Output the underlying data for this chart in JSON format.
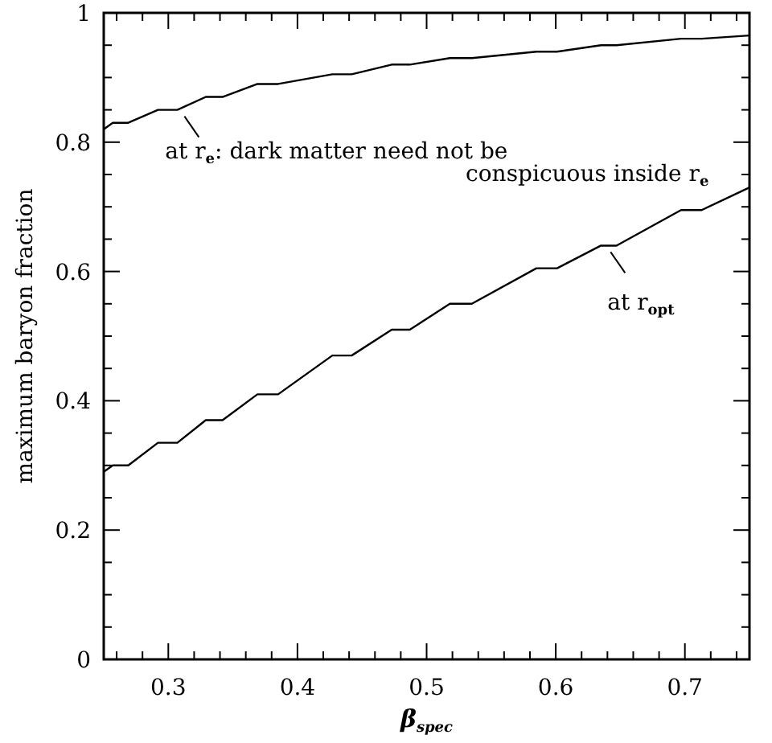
{
  "chart_data": {
    "type": "line",
    "xlabel": "β$_{spec}$",
    "ylabel": "maximum baryon fraction",
    "xlim": [
      0.25,
      0.75
    ],
    "ylim": [
      0,
      1
    ],
    "xticks": [
      {
        "value": 0.26,
        "label": null
      },
      {
        "value": 0.28,
        "label": null
      },
      0.3,
      {
        "value": 0.32,
        "label": null
      },
      {
        "value": 0.34,
        "label": null
      },
      {
        "value": 0.36,
        "label": null
      },
      {
        "value": 0.38,
        "label": null
      },
      0.4,
      {
        "value": 0.42,
        "label": null
      },
      {
        "value": 0.44,
        "label": null
      },
      {
        "value": 0.46,
        "label": null
      },
      {
        "value": 0.48,
        "label": null
      },
      0.5,
      {
        "value": 0.52,
        "label": null
      },
      {
        "value": 0.54,
        "label": null
      },
      {
        "value": 0.56,
        "label": null
      },
      {
        "value": 0.58,
        "label": null
      },
      0.6,
      {
        "value": 0.62,
        "label": null
      },
      {
        "value": 0.64,
        "label": null
      },
      {
        "value": 0.66,
        "label": null
      },
      {
        "value": 0.68,
        "label": null
      },
      0.7,
      {
        "value": 0.72,
        "label": null
      },
      {
        "value": 0.74,
        "label": null
      }
    ],
    "yticks": [
      0,
      {
        "value": 0.05,
        "label": null
      },
      {
        "value": 0.1,
        "label": null
      },
      {
        "value": 0.15,
        "label": null
      },
      0.2,
      {
        "value": 0.25,
        "label": null
      },
      {
        "value": 0.3,
        "label": null
      },
      {
        "value": 0.35,
        "label": null
      },
      0.4,
      {
        "value": 0.45,
        "label": null
      },
      {
        "value": 0.5,
        "label": null
      },
      {
        "value": 0.55,
        "label": null
      },
      0.6,
      {
        "value": 0.65,
        "label": null
      },
      {
        "value": 0.7,
        "label": null
      },
      {
        "value": 0.75,
        "label": null
      },
      0.8,
      {
        "value": 0.85,
        "label": null
      },
      {
        "value": 0.9,
        "label": null
      },
      {
        "value": 0.95,
        "label": null
      },
      1
    ],
    "grid": false,
    "marker": "none",
    "line_style": "solid",
    "series": [
      {
        "color": "#000000",
        "x": [
          0.25,
          0.257,
          0.269,
          0.292,
          0.307,
          0.329,
          0.342,
          0.369,
          0.385,
          0.427,
          0.442,
          0.473,
          0.487,
          0.518,
          0.535,
          0.585,
          0.601,
          0.635,
          0.647,
          0.697,
          0.713,
          0.75
        ],
        "values": [
          0.82,
          0.83,
          0.83,
          0.85,
          0.85,
          0.87,
          0.87,
          0.89,
          0.89,
          0.905,
          0.905,
          0.92,
          0.92,
          0.93,
          0.93,
          0.94,
          0.94,
          0.95,
          0.95,
          0.96,
          0.96,
          0.965
        ]
      },
      {
        "color": "#000000",
        "x": [
          0.25,
          0.257,
          0.269,
          0.292,
          0.307,
          0.329,
          0.342,
          0.369,
          0.385,
          0.427,
          0.442,
          0.473,
          0.487,
          0.518,
          0.535,
          0.585,
          0.601,
          0.635,
          0.647,
          0.697,
          0.713,
          0.75
        ],
        "values": [
          0.29,
          0.3,
          0.3,
          0.335,
          0.335,
          0.37,
          0.37,
          0.41,
          0.41,
          0.47,
          0.47,
          0.51,
          0.51,
          0.55,
          0.55,
          0.605,
          0.605,
          0.64,
          0.64,
          0.695,
          0.695,
          0.73
        ]
      }
    ],
    "annotations": [
      {
        "text": "at r$_{e}$: dark matter need not be\nconspicuous inside r$_{e}$",
        "x": 0.31,
        "y": 0.85
      },
      {
        "text": "at r$_{opt}$",
        "x": 0.64,
        "y": 0.64
      }
    ]
  }
}
